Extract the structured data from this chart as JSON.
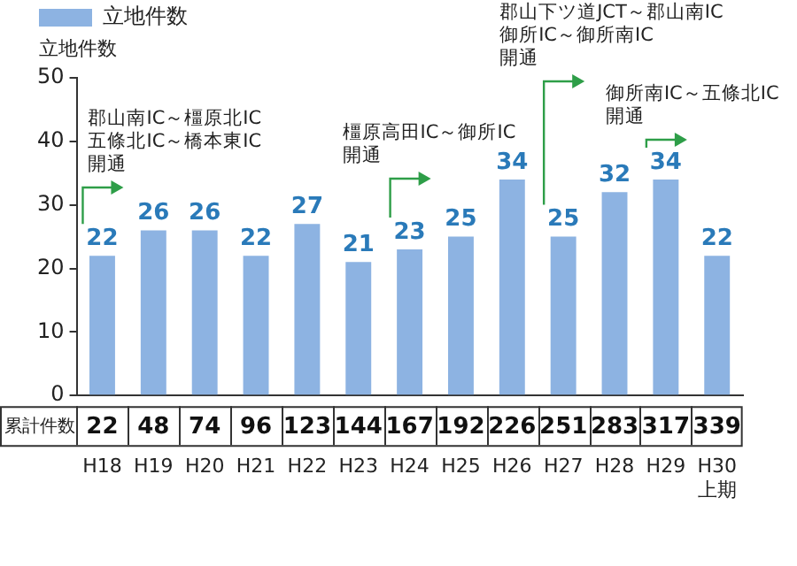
{
  "chart_data": {
    "type": "bar",
    "ylabel": "立地件数",
    "categories": [
      "H18",
      "H19",
      "H20",
      "H21",
      "H22",
      "H23",
      "H24",
      "H25",
      "H26",
      "H27",
      "H28",
      "H29",
      "H30\n上期"
    ],
    "series": [
      {
        "name": "立地件数",
        "color": "#8db3e2",
        "values": [
          22,
          26,
          26,
          22,
          27,
          21,
          23,
          25,
          34,
          25,
          32,
          34,
          22
        ]
      }
    ],
    "data_labels": true,
    "ylim": [
      0,
      50
    ],
    "yticks": [
      0,
      10,
      20,
      30,
      40,
      50
    ],
    "grid": false,
    "legend": "top",
    "annotations": [
      "郡山南IC～橿原北IC\n五條北IC～橋本東IC\n開通",
      "橿原高田IC～御所IC\n開通",
      "郡山下ツ道JCT～郡山南IC\n御所IC～御所南IC\n開通",
      "御所南IC～五條北IC\n開通",
      "累計件数",
      "22",
      "48",
      "74",
      "96",
      "123",
      "144",
      "167",
      "192",
      "226",
      "251",
      "283",
      "317",
      "339"
    ]
  }
}
